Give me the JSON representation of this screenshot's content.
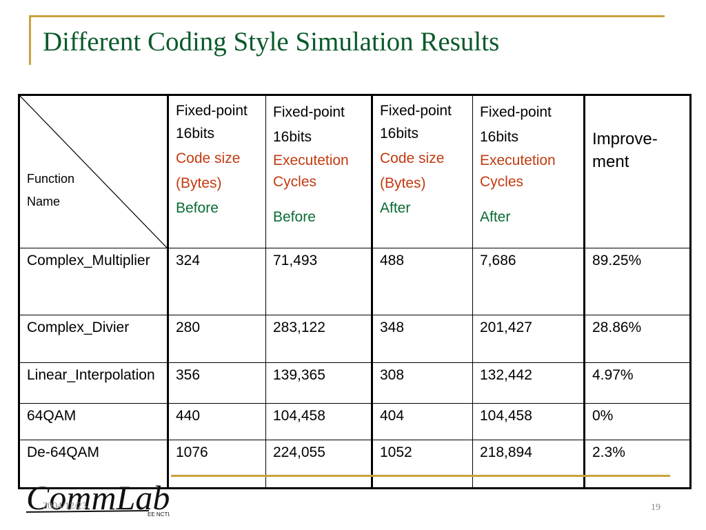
{
  "title": "Different Coding Style Simulation Results",
  "corner": {
    "line1": "Function",
    "line2": "Name"
  },
  "headers": [
    {
      "line1": "Fixed-point",
      "line2": "16bits",
      "line3": "Code size",
      "line4": "(Bytes)",
      "line5": "Before"
    },
    {
      "line1": "Fixed-point",
      "line2": "16bits",
      "line3": "Executetion Cycles",
      "line5": "Before"
    },
    {
      "line1": "Fixed-point",
      "line2": "16bits",
      "line3": "Code size",
      "line4": "(Bytes)",
      "line5": "After"
    },
    {
      "line1": "Fixed-point",
      "line2": "16bits",
      "line3": "Executetion Cycles",
      "line5": "After"
    },
    {
      "line1": "Improve-ment"
    }
  ],
  "rows": [
    {
      "name": "Complex_Multiplier",
      "values": [
        "324",
        "71,493",
        "488",
        "7,686",
        "89.25%"
      ]
    },
    {
      "name": "Complex_Divier",
      "values": [
        "280",
        "283,122",
        "348",
        "201,427",
        "28.86%"
      ]
    },
    {
      "name": "Linear_Interpolation",
      "values": [
        "356",
        "139,365",
        "308",
        "132,442",
        "4.97%"
      ]
    },
    {
      "name": "64QAM",
      "values": [
        "440",
        "104,458",
        "404",
        "104,458",
        "0%"
      ]
    },
    {
      "name": "De-64QAM",
      "values": [
        "1076",
        "224,055",
        "1052",
        "218,894",
        "2.3%"
      ]
    }
  ],
  "footer": {
    "date": "2004/12/23",
    "page": "19",
    "logo_text": "CommLab",
    "logo_sub": "EE NCTU"
  },
  "colors": {
    "title": "#0a5a2a",
    "accent_gold": "#c9a23c",
    "cycles_red": "#c23a10",
    "phase_green": "#0a6a32"
  }
}
